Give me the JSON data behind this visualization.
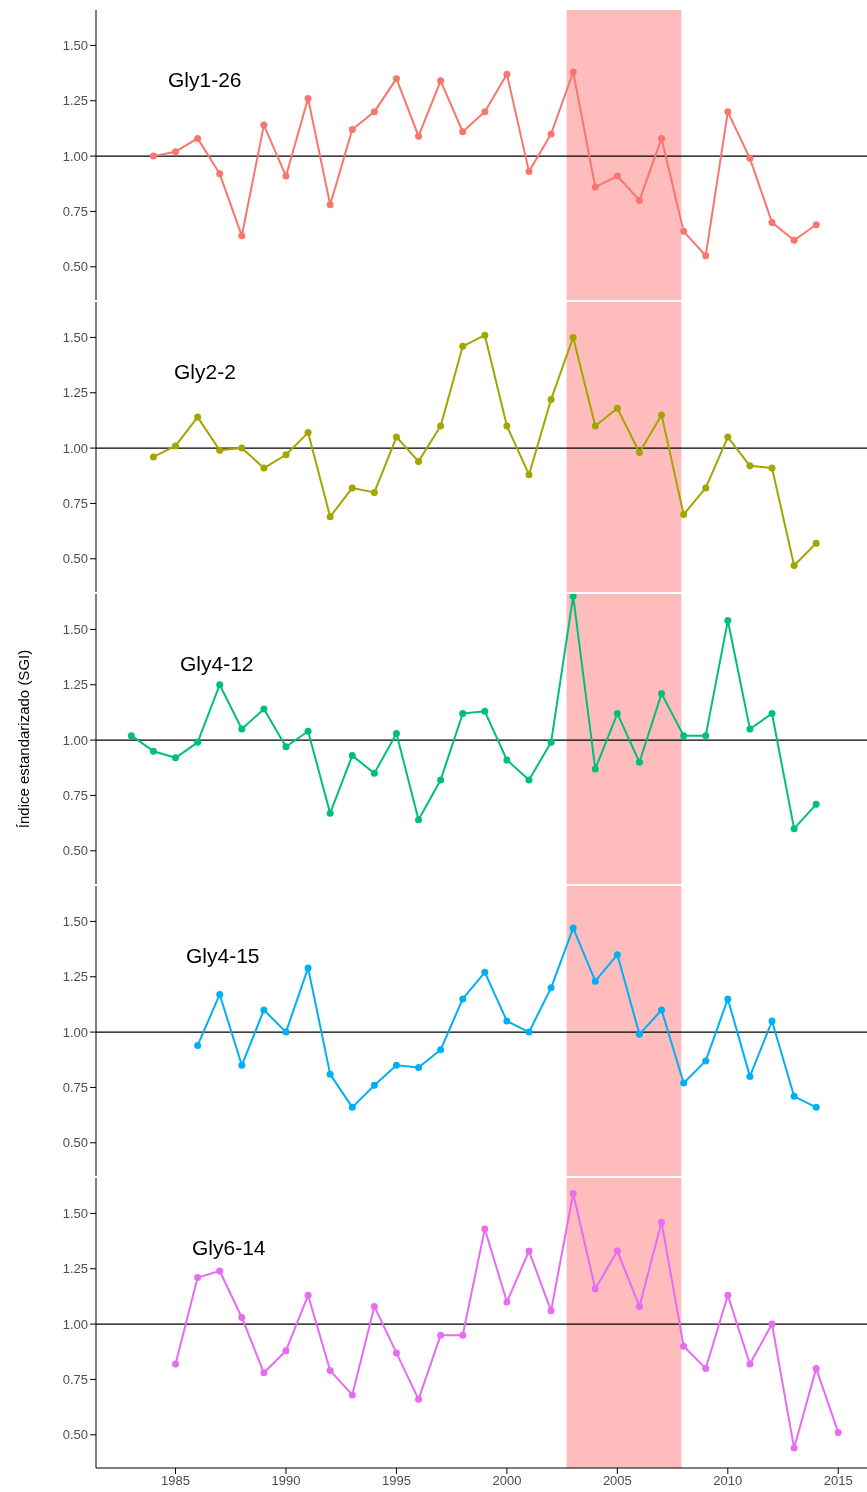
{
  "chart_data": [
    {
      "type": "line",
      "title": "Gly1-26",
      "x": [
        1984,
        1985,
        1986,
        1987,
        1988,
        1989,
        1990,
        1991,
        1992,
        1993,
        1994,
        1995,
        1996,
        1997,
        1998,
        1999,
        2000,
        2001,
        2002,
        2003,
        2004,
        2005,
        2006,
        2007,
        2008,
        2009,
        2010,
        2011,
        2012,
        2013,
        2014
      ],
      "series": [
        {
          "color": "#f8766d",
          "values": [
            1.0,
            1.02,
            1.08,
            0.92,
            0.64,
            1.14,
            0.91,
            1.26,
            0.78,
            1.12,
            1.2,
            1.35,
            1.09,
            1.34,
            1.11,
            1.2,
            1.37,
            0.93,
            1.1,
            1.38,
            0.86,
            0.91,
            0.8,
            1.08,
            0.66,
            0.55,
            1.2,
            0.99,
            0.7,
            0.62,
            0.69
          ]
        }
      ],
      "xlim": [
        1981.4,
        2016.3
      ],
      "xticks": [
        1985,
        1990,
        1995,
        2000,
        2005,
        2010,
        2015
      ],
      "ylim": [
        0.35,
        1.66
      ],
      "yticks": [
        {
          "value": 0.5,
          "label": "0.50"
        },
        {
          "value": 0.75,
          "label": "0.75"
        },
        {
          "value": 1,
          "label": "1.00"
        },
        {
          "value": 1.25,
          "label": "1.25"
        },
        {
          "value": 1.5,
          "label": "1.50"
        }
      ],
      "ref_lines": [
        {
          "axis": "y",
          "value": 1,
          "color": "#000000"
        }
      ],
      "bands": [
        {
          "axis": "x",
          "from": 2002.7,
          "to": 2007.9,
          "color": "#ffbcbc"
        }
      ],
      "marker": "circle",
      "tick_labels": "y"
    },
    {
      "type": "line",
      "title": "Gly2-2",
      "x": [
        1984,
        1985,
        1986,
        1987,
        1988,
        1989,
        1990,
        1991,
        1992,
        1993,
        1994,
        1995,
        1996,
        1997,
        1998,
        1999,
        2000,
        2001,
        2002,
        2003,
        2004,
        2005,
        2006,
        2007,
        2008,
        2009,
        2010,
        2011,
        2012,
        2013,
        2014
      ],
      "series": [
        {
          "color": "#a3a500",
          "values": [
            0.96,
            1.01,
            1.14,
            0.99,
            1.0,
            0.91,
            0.97,
            1.07,
            0.69,
            0.82,
            0.8,
            1.05,
            0.94,
            1.1,
            1.46,
            1.51,
            1.1,
            0.88,
            1.22,
            1.5,
            1.1,
            1.18,
            0.98,
            1.15,
            0.7,
            0.82,
            1.05,
            0.92,
            0.91,
            0.47,
            0.57
          ]
        }
      ],
      "xlim": [
        1981.4,
        2016.3
      ],
      "xticks": [
        1985,
        1990,
        1995,
        2000,
        2005,
        2010,
        2015
      ],
      "ylim": [
        0.35,
        1.66
      ],
      "yticks": [
        {
          "value": 0.5,
          "label": "0.50"
        },
        {
          "value": 0.75,
          "label": "0.75"
        },
        {
          "value": 1,
          "label": "1.00"
        },
        {
          "value": 1.25,
          "label": "1.25"
        },
        {
          "value": 1.5,
          "label": "1.50"
        }
      ],
      "ref_lines": [
        {
          "axis": "y",
          "value": 1,
          "color": "#000000"
        }
      ],
      "bands": [
        {
          "axis": "x",
          "from": 2002.7,
          "to": 2007.9,
          "color": "#ffbcbc"
        }
      ],
      "marker": "circle",
      "tick_labels": "y"
    },
    {
      "type": "line",
      "title": "Gly4-12",
      "ylabel": "Índice estandarizado (SGI)",
      "x": [
        1983,
        1984,
        1985,
        1986,
        1987,
        1988,
        1989,
        1990,
        1991,
        1992,
        1993,
        1994,
        1995,
        1996,
        1997,
        1998,
        1999,
        2000,
        2001,
        2002,
        2003,
        2004,
        2005,
        2006,
        2007,
        2008,
        2009,
        2010,
        2011,
        2012,
        2013,
        2014
      ],
      "series": [
        {
          "color": "#00bf7d",
          "values": [
            1.02,
            0.95,
            0.92,
            0.99,
            1.25,
            1.05,
            1.14,
            0.97,
            1.04,
            0.67,
            0.93,
            0.85,
            1.03,
            0.64,
            0.82,
            1.12,
            1.13,
            0.91,
            0.82,
            0.99,
            1.65,
            0.87,
            1.12,
            0.9,
            1.21,
            1.02,
            1.02,
            1.54,
            1.05,
            1.12,
            0.6,
            0.71
          ]
        }
      ],
      "xlim": [
        1981.4,
        2016.3
      ],
      "xticks": [
        1985,
        1990,
        1995,
        2000,
        2005,
        2010,
        2015
      ],
      "ylim": [
        0.35,
        1.66
      ],
      "yticks": [
        {
          "value": 0.5,
          "label": "0.50"
        },
        {
          "value": 0.75,
          "label": "0.75"
        },
        {
          "value": 1,
          "label": "1.00"
        },
        {
          "value": 1.25,
          "label": "1.25"
        },
        {
          "value": 1.5,
          "label": "1.50"
        }
      ],
      "ref_lines": [
        {
          "axis": "y",
          "value": 1,
          "color": "#000000"
        }
      ],
      "bands": [
        {
          "axis": "x",
          "from": 2002.7,
          "to": 2007.9,
          "color": "#ffbcbc"
        }
      ],
      "marker": "circle",
      "tick_labels": "y"
    },
    {
      "type": "line",
      "title": "Gly4-15",
      "x": [
        1986,
        1987,
        1988,
        1989,
        1990,
        1991,
        1992,
        1993,
        1994,
        1995,
        1996,
        1997,
        1998,
        1999,
        2000,
        2001,
        2002,
        2003,
        2004,
        2005,
        2006,
        2007,
        2008,
        2009,
        2010,
        2011,
        2012,
        2013,
        2014
      ],
      "series": [
        {
          "color": "#00b0f6",
          "values": [
            0.94,
            1.17,
            0.85,
            1.1,
            1.0,
            1.29,
            0.81,
            0.66,
            0.76,
            0.85,
            0.84,
            0.92,
            1.15,
            1.27,
            1.05,
            1.0,
            1.2,
            1.47,
            1.23,
            1.35,
            0.99,
            1.1,
            0.77,
            0.87,
            1.15,
            0.8,
            1.05,
            0.71,
            0.66
          ]
        }
      ],
      "xlim": [
        1981.4,
        2016.3
      ],
      "xticks": [
        1985,
        1990,
        1995,
        2000,
        2005,
        2010,
        2015
      ],
      "ylim": [
        0.35,
        1.66
      ],
      "yticks": [
        {
          "value": 0.5,
          "label": "0.50"
        },
        {
          "value": 0.75,
          "label": "0.75"
        },
        {
          "value": 1,
          "label": "1.00"
        },
        {
          "value": 1.25,
          "label": "1.25"
        },
        {
          "value": 1.5,
          "label": "1.50"
        }
      ],
      "ref_lines": [
        {
          "axis": "y",
          "value": 1,
          "color": "#000000"
        }
      ],
      "bands": [
        {
          "axis": "x",
          "from": 2002.7,
          "to": 2007.9,
          "color": "#ffbcbc"
        }
      ],
      "marker": "circle",
      "tick_labels": "y"
    },
    {
      "type": "line",
      "title": "Gly6-14",
      "x": [
        1985,
        1986,
        1987,
        1988,
        1989,
        1990,
        1991,
        1992,
        1993,
        1994,
        1995,
        1996,
        1997,
        1998,
        1999,
        2000,
        2001,
        2002,
        2003,
        2004,
        2005,
        2006,
        2007,
        2008,
        2009,
        2010,
        2011,
        2012,
        2013,
        2014,
        2015
      ],
      "series": [
        {
          "color": "#e76bf3",
          "values": [
            0.82,
            1.21,
            1.24,
            1.03,
            0.78,
            0.88,
            1.13,
            0.79,
            0.68,
            1.08,
            0.87,
            0.66,
            0.95,
            0.95,
            1.43,
            1.1,
            1.33,
            1.06,
            1.59,
            1.16,
            1.33,
            1.08,
            1.46,
            0.9,
            0.8,
            1.13,
            0.82,
            1.0,
            0.44,
            0.8,
            0.51
          ]
        }
      ],
      "xlim": [
        1981.4,
        2016.3
      ],
      "xticks": [
        1985,
        1990,
        1995,
        2000,
        2005,
        2010,
        2015
      ],
      "ylim": [
        0.35,
        1.66
      ],
      "yticks": [
        {
          "value": 0.5,
          "label": "0.50"
        },
        {
          "value": 0.75,
          "label": "0.75"
        },
        {
          "value": 1,
          "label": "1.00"
        },
        {
          "value": 1.25,
          "label": "1.25"
        },
        {
          "value": 1.5,
          "label": "1.50"
        }
      ],
      "ref_lines": [
        {
          "axis": "y",
          "value": 1,
          "color": "#000000"
        }
      ],
      "bands": [
        {
          "axis": "x",
          "from": 2002.7,
          "to": 2007.9,
          "color": "#ffbcbc"
        }
      ],
      "marker": "circle"
    }
  ]
}
